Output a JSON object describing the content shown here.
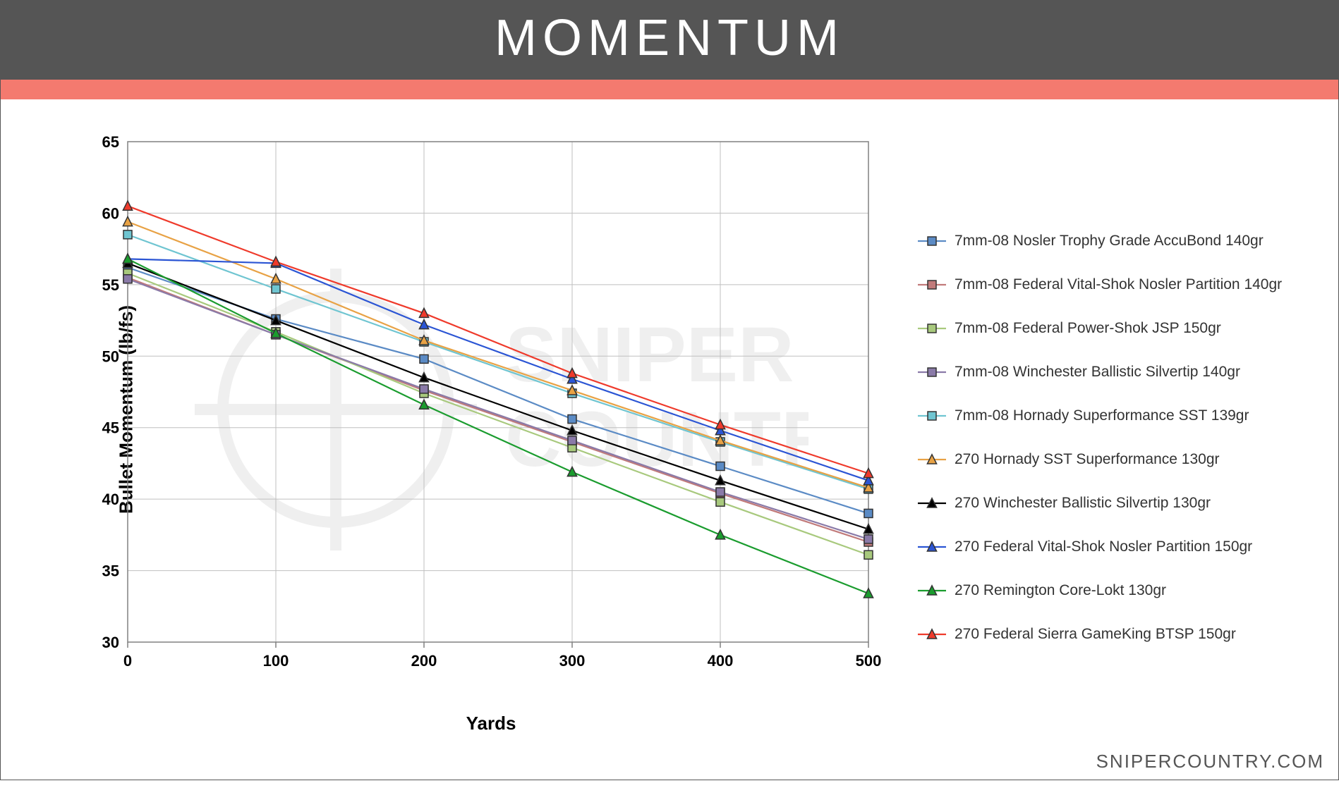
{
  "title": "MOMENTUM",
  "accent_color": "#f47a6f",
  "title_bg_color": "#555555",
  "title_text_color": "#ffffff",
  "footer_brand": "SNIPERCOUNTRY.COM",
  "chart": {
    "type": "line",
    "background_color": "#ffffff",
    "grid_color": "#bfbfbf",
    "grid_width": 1,
    "axis_color": "#808080",
    "xlabel": "Yards",
    "ylabel": "Bullet Momentum (lb/fs)",
    "label_fontsize": 26,
    "label_fontweight": "bold",
    "tick_fontsize": 22,
    "tick_fontweight": "bold",
    "x_categories": [
      "0",
      "100",
      "200",
      "300",
      "400",
      "500"
    ],
    "x_positions": [
      0,
      100,
      200,
      300,
      400,
      500
    ],
    "xlim": [
      0,
      500
    ],
    "ylim": [
      30,
      65
    ],
    "ytick_step": 5,
    "yticks": [
      30,
      35,
      40,
      45,
      50,
      55,
      60,
      65
    ],
    "line_width": 2.2,
    "marker_size": 6,
    "series": [
      {
        "label": "7mm-08 Nosler Trophy Grade AccuBond 140gr",
        "color": "#5b8bc5",
        "marker": "square",
        "values": [
          56.2,
          52.6,
          49.8,
          45.6,
          42.3,
          39.0
        ]
      },
      {
        "label": "7mm-08 Federal Vital-Shok Nosler Partition 140gr",
        "color": "#c17a7a",
        "marker": "square",
        "values": [
          55.5,
          51.5,
          47.6,
          44.0,
          40.4,
          37.0
        ]
      },
      {
        "label": "7mm-08 Federal Power-Shok JSP 150gr",
        "color": "#a8c97d",
        "marker": "square",
        "values": [
          55.8,
          51.7,
          47.4,
          43.6,
          39.8,
          36.1
        ]
      },
      {
        "label": "7mm-08 Winchester Ballistic Silvertip 140gr",
        "color": "#8a7aa8",
        "marker": "square",
        "values": [
          55.4,
          51.5,
          47.7,
          44.1,
          40.5,
          37.2
        ]
      },
      {
        "label": "7mm-08 Hornady Superformance SST 139gr",
        "color": "#6fc5d1",
        "marker": "square",
        "values": [
          58.5,
          54.7,
          51.0,
          47.4,
          44.0,
          40.7
        ]
      },
      {
        "label": "270 Hornady SST Superformance 130gr",
        "color": "#e8a245",
        "marker": "triangle",
        "values": [
          59.4,
          55.4,
          51.1,
          47.6,
          44.1,
          40.8
        ]
      },
      {
        "label": "270 Winchester Ballistic Silvertip 130gr",
        "color": "#000000",
        "marker": "triangle",
        "values": [
          56.5,
          52.5,
          48.5,
          44.8,
          41.3,
          37.9
        ]
      },
      {
        "label": "270 Federal Vital-Shok Nosler Partition 150gr",
        "color": "#2b55d4",
        "marker": "triangle",
        "values": [
          56.8,
          56.5,
          52.2,
          48.4,
          44.8,
          41.3
        ]
      },
      {
        "label": "270 Remington Core-Lokt 130gr",
        "color": "#1a9c2e",
        "marker": "triangle",
        "values": [
          56.8,
          51.6,
          46.6,
          41.9,
          37.5,
          33.4
        ]
      },
      {
        "label": "270 Federal Sierra GameKing BTSP 150gr",
        "color": "#ef3a2b",
        "marker": "triangle",
        "values": [
          60.5,
          56.6,
          53.0,
          48.8,
          45.2,
          41.8
        ]
      }
    ]
  }
}
